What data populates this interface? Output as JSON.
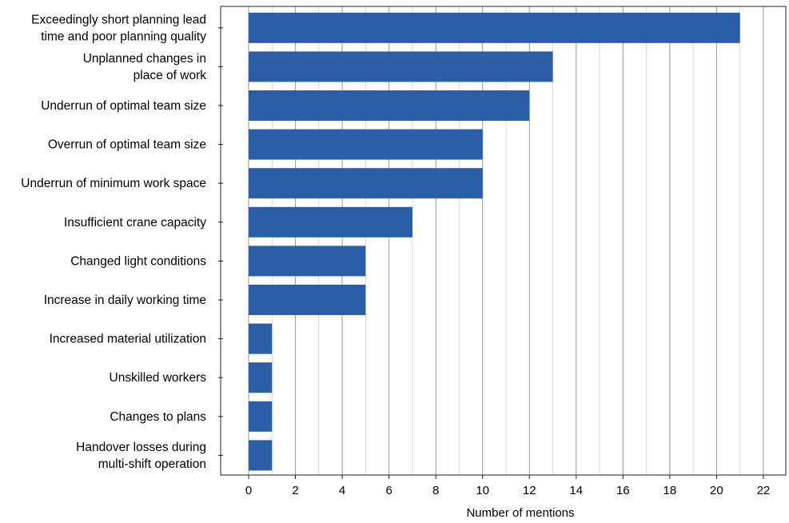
{
  "chart_data": {
    "type": "bar",
    "orientation": "horizontal",
    "title": "",
    "xlabel": "Number of mentions",
    "ylabel": "",
    "xlim": [
      0,
      22
    ],
    "x_ticks": [
      0,
      2,
      4,
      6,
      8,
      10,
      12,
      14,
      16,
      18,
      20,
      22
    ],
    "grid": true,
    "bar_color": "#2a5ea7",
    "categories": [
      [
        "Exceedingly short planning lead",
        "time and poor planning quality"
      ],
      [
        "Unplanned changes in",
        "place of work"
      ],
      [
        "Underrun of optimal team size"
      ],
      [
        "Overrun of optimal team size"
      ],
      [
        "Underrun of minimum work space"
      ],
      [
        "Insufficient crane capacity"
      ],
      [
        "Changed light conditions"
      ],
      [
        "Increase in daily working time"
      ],
      [
        "Increased material utilization"
      ],
      [
        "Unskilled workers"
      ],
      [
        "Changes to plans"
      ],
      [
        "Handover losses during",
        "multi-shift operation"
      ]
    ],
    "values": [
      21,
      13,
      12,
      10,
      10,
      7,
      5,
      5,
      1,
      1,
      1,
      1
    ]
  }
}
